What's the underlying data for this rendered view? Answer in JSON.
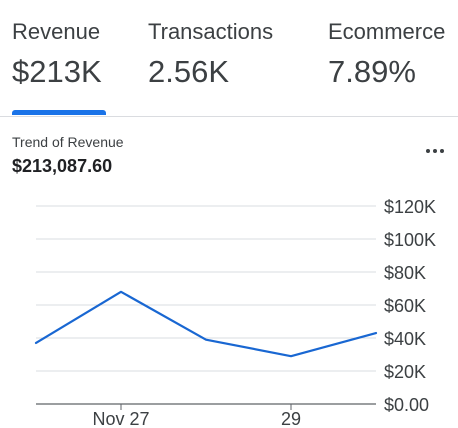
{
  "tabs": [
    {
      "label": "Revenue",
      "value": "$213K",
      "selected": true
    },
    {
      "label": "Transactions",
      "value": "2.56K",
      "selected": false
    },
    {
      "label": "Ecommerce",
      "value": "7.89%",
      "selected": false
    }
  ],
  "card": {
    "title": "Trend of Revenue",
    "total": "$213,087.60",
    "menu_icon": "more-horizontal-icon"
  },
  "colors": {
    "accent": "#1a73e8",
    "line": "#1967d2",
    "grid": "#dadce0",
    "text": "#3c4043"
  },
  "chart_data": {
    "type": "line",
    "title": "",
    "xlabel": "",
    "ylabel": "",
    "x_ticks": [
      "Nov 27",
      "29"
    ],
    "y_ticks": [
      "$0.00",
      "$20K",
      "$40K",
      "$60K",
      "$80K",
      "$100K",
      "$120K"
    ],
    "ylim": [
      0,
      120000
    ],
    "grid": true,
    "series": [
      {
        "values": [
          37000,
          68000,
          39000,
          29000,
          43000
        ]
      }
    ]
  }
}
